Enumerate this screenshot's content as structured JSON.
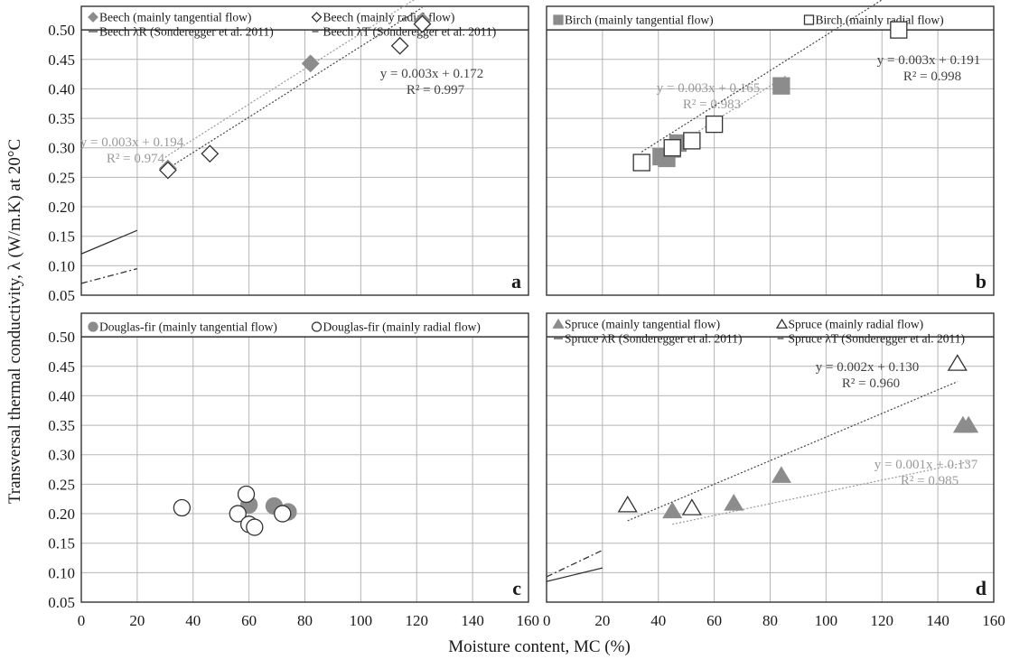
{
  "axis_labels": {
    "y": "Transversal thermal conductivity, λ (W/m.K) at 20°C",
    "x": "Moisture content, MC (%)"
  },
  "chart_data": [
    {
      "panel": "a",
      "type": "scatter",
      "xlim": [
        0,
        160
      ],
      "ylim": [
        0.05,
        0.5
      ],
      "x_ticks": [
        0,
        20,
        40,
        60,
        80,
        100,
        120,
        140,
        160
      ],
      "y_ticks": [
        0.05,
        0.1,
        0.15,
        0.2,
        0.25,
        0.3,
        0.35,
        0.4,
        0.45,
        0.5
      ],
      "grid": true,
      "legend": [
        {
          "label": "Beech (mainly tangential flow)",
          "marker": "diamond-filled"
        },
        {
          "label": "Beech (mainly radial flow)",
          "marker": "diamond-open"
        },
        {
          "label": "Beech λR (Sonderegger et al. 2011)",
          "marker": "line-solid"
        },
        {
          "label": "Beech λT (Sonderegger et al. 2011)",
          "marker": "line-dashdot"
        }
      ],
      "series": [
        {
          "name": "Beech (mainly tangential flow)",
          "marker": "diamond-filled",
          "x": [
            31,
            82,
            122
          ],
          "y": [
            0.265,
            0.443,
            0.515
          ]
        },
        {
          "name": "Beech (mainly radial flow)",
          "marker": "diamond-open",
          "x": [
            31,
            46,
            114,
            122
          ],
          "y": [
            0.262,
            0.29,
            0.473,
            0.51
          ]
        },
        {
          "name": "Beech λR (Sonderegger et al. 2011)",
          "line": "solid",
          "x": [
            0,
            20
          ],
          "y": [
            0.12,
            0.16
          ]
        },
        {
          "name": "Beech λT (Sonderegger et al. 2011)",
          "line": "dashdot",
          "x": [
            0,
            20
          ],
          "y": [
            0.07,
            0.095
          ]
        }
      ],
      "trendlines": [
        {
          "series": "Beech (mainly tangential flow)",
          "slope": 0.003,
          "intercept": 0.194,
          "equation": "y = 0.003x + 0.194",
          "r2": "R² = 0.974",
          "x_range": [
            30,
            122
          ],
          "color": "#9a9a9a"
        },
        {
          "series": "Beech (mainly radial flow)",
          "slope": 0.003,
          "intercept": 0.172,
          "equation": "y = 0.003x + 0.172",
          "r2": "R² = 0.997",
          "x_range": [
            30,
            122
          ],
          "color": "#444444"
        }
      ]
    },
    {
      "panel": "b",
      "type": "scatter",
      "xlim": [
        0,
        160
      ],
      "ylim": [
        0.05,
        0.5
      ],
      "x_ticks": [
        0,
        20,
        40,
        60,
        80,
        100,
        120,
        140,
        160
      ],
      "y_ticks": [
        0.05,
        0.1,
        0.15,
        0.2,
        0.25,
        0.3,
        0.35,
        0.4,
        0.45,
        0.5
      ],
      "grid": true,
      "legend": [
        {
          "label": "Birch (mainly tangential flow)",
          "marker": "square-filled"
        },
        {
          "label": "Birch (mainly radial flow)",
          "marker": "square-open"
        }
      ],
      "series": [
        {
          "name": "Birch (mainly tangential flow)",
          "marker": "square-filled",
          "x": [
            41,
            43,
            45,
            47,
            84
          ],
          "y": [
            0.285,
            0.282,
            0.298,
            0.308,
            0.405
          ]
        },
        {
          "name": "Birch (mainly radial flow)",
          "marker": "square-open",
          "x": [
            34,
            45,
            52,
            60,
            126
          ],
          "y": [
            0.275,
            0.3,
            0.312,
            0.34,
            0.5
          ]
        }
      ],
      "trendlines": [
        {
          "series": "Birch (mainly tangential flow)",
          "slope": 0.003,
          "intercept": 0.165,
          "equation": "y = 0.003x + 0.165",
          "r2": "R² = 0.983",
          "x_range": [
            38,
            86
          ],
          "color": "#9a9a9a"
        },
        {
          "series": "Birch (mainly radial flow)",
          "slope": 0.003,
          "intercept": 0.191,
          "equation": "y = 0.003x + 0.191",
          "r2": "R² = 0.998",
          "x_range": [
            34,
            126
          ],
          "color": "#444444"
        }
      ]
    },
    {
      "panel": "c",
      "type": "scatter",
      "xlim": [
        0,
        160
      ],
      "ylim": [
        0.05,
        0.5
      ],
      "x_ticks": [
        0,
        20,
        40,
        60,
        80,
        100,
        120,
        140,
        160
      ],
      "y_ticks": [
        0.05,
        0.1,
        0.15,
        0.2,
        0.25,
        0.3,
        0.35,
        0.4,
        0.45,
        0.5
      ],
      "grid": true,
      "legend": [
        {
          "label": "Douglas-fir (mainly tangential flow)",
          "marker": "circle-filled"
        },
        {
          "label": "Douglas-fir (mainly radial flow)",
          "marker": "circle-open"
        }
      ],
      "series": [
        {
          "name": "Douglas-fir (mainly tangential flow)",
          "marker": "circle-filled",
          "x": [
            60,
            69,
            74
          ],
          "y": [
            0.215,
            0.213,
            0.203
          ]
        },
        {
          "name": "Douglas-fir (mainly radial flow)",
          "marker": "circle-open",
          "x": [
            36,
            56,
            59,
            60,
            62,
            72
          ],
          "y": [
            0.21,
            0.2,
            0.233,
            0.182,
            0.177,
            0.2
          ]
        }
      ],
      "trendlines": []
    },
    {
      "panel": "d",
      "type": "scatter",
      "xlim": [
        0,
        160
      ],
      "ylim": [
        0.05,
        0.5
      ],
      "x_ticks": [
        0,
        20,
        40,
        60,
        80,
        100,
        120,
        140,
        160
      ],
      "y_ticks": [
        0.05,
        0.1,
        0.15,
        0.2,
        0.25,
        0.3,
        0.35,
        0.4,
        0.45,
        0.5
      ],
      "grid": true,
      "legend": [
        {
          "label": "Spruce (mainly tangential flow)",
          "marker": "triangle-filled"
        },
        {
          "label": "Spruce (mainly radial flow)",
          "marker": "triangle-open"
        },
        {
          "label": "Spruce λR (Sonderegger et al. 2011)",
          "marker": "line-solid"
        },
        {
          "label": "Spruce λT (Sonderegger et al. 2011)",
          "marker": "line-dashdot"
        }
      ],
      "series": [
        {
          "name": "Spruce (mainly tangential flow)",
          "marker": "triangle-filled",
          "x": [
            45,
            67,
            84,
            149,
            151
          ],
          "y": [
            0.205,
            0.218,
            0.265,
            0.35,
            0.35
          ]
        },
        {
          "name": "Spruce (mainly radial flow)",
          "marker": "triangle-open",
          "x": [
            29,
            52,
            147
          ],
          "y": [
            0.215,
            0.21,
            0.455
          ]
        },
        {
          "name": "Spruce λR (Sonderegger et al. 2011)",
          "line": "solid",
          "x": [
            0,
            20
          ],
          "y": [
            0.085,
            0.108
          ]
        },
        {
          "name": "Spruce λT (Sonderegger et al. 2011)",
          "line": "dashdot",
          "x": [
            0,
            20
          ],
          "y": [
            0.093,
            0.138
          ]
        }
      ],
      "trendlines": [
        {
          "series": "Spruce (mainly radial flow)",
          "slope": 0.002,
          "intercept": 0.13,
          "equation": "y = 0.002x + 0.130",
          "r2": "R² = 0.960",
          "x_range": [
            29,
            147
          ],
          "color": "#444444"
        },
        {
          "series": "Spruce (mainly tangential flow)",
          "slope": 0.001,
          "intercept": 0.137,
          "equation": "y = 0.001x + 0.137",
          "r2": "R² = 0.985",
          "x_range": [
            45,
            151
          ],
          "color": "#9a9a9a"
        }
      ]
    }
  ]
}
